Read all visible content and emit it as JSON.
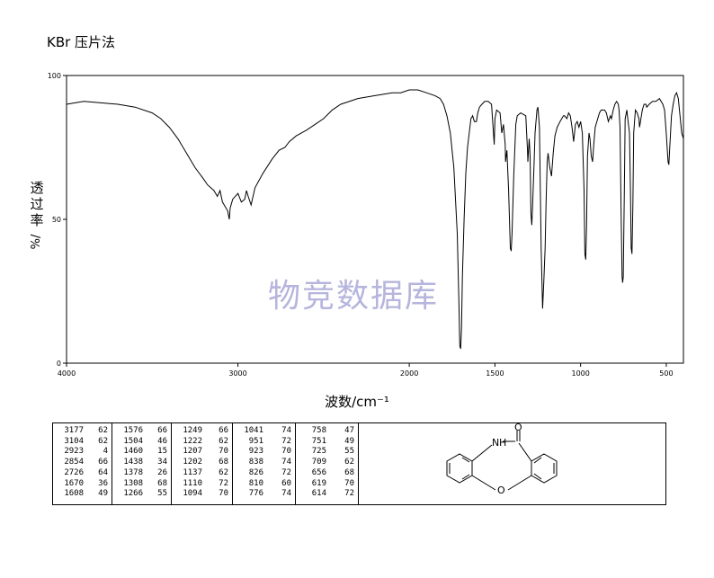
{
  "title": "KBr 压片法",
  "watermark": "物竞数据库",
  "chart_data": {
    "type": "line",
    "title": "",
    "xlabel": "波数/cm⁻¹",
    "ylabel": "透过率",
    "ylabel_unit": "%/",
    "xlim": [
      4000,
      400
    ],
    "ylim": [
      0,
      100
    ],
    "x_ticks": [
      "4000",
      "3000",
      "2000",
      "1500",
      "1000",
      "500"
    ],
    "y_ticks": [
      "100",
      "50",
      "0"
    ],
    "grid": false,
    "series": [
      {
        "points": [
          [
            4000,
            90
          ],
          [
            3900,
            91
          ],
          [
            3800,
            90.5
          ],
          [
            3700,
            90
          ],
          [
            3600,
            89
          ],
          [
            3500,
            87
          ],
          [
            3450,
            85
          ],
          [
            3400,
            82
          ],
          [
            3350,
            78
          ],
          [
            3300,
            73
          ],
          [
            3250,
            68
          ],
          [
            3200,
            64
          ],
          [
            3177,
            62
          ],
          [
            3140,
            60
          ],
          [
            3120,
            58
          ],
          [
            3104,
            60
          ],
          [
            3090,
            56
          ],
          [
            3060,
            53
          ],
          [
            3050,
            50
          ],
          [
            3045,
            54
          ],
          [
            3030,
            57
          ],
          [
            3000,
            59
          ],
          [
            2980,
            56
          ],
          [
            2960,
            57
          ],
          [
            2950,
            60
          ],
          [
            2940,
            58
          ],
          [
            2923,
            55
          ],
          [
            2900,
            61
          ],
          [
            2854,
            66
          ],
          [
            2800,
            71
          ],
          [
            2760,
            74
          ],
          [
            2726,
            75
          ],
          [
            2700,
            77
          ],
          [
            2660,
            79
          ],
          [
            2600,
            81
          ],
          [
            2550,
            83
          ],
          [
            2500,
            85
          ],
          [
            2450,
            88
          ],
          [
            2400,
            90
          ],
          [
            2300,
            92
          ],
          [
            2200,
            93
          ],
          [
            2100,
            94
          ],
          [
            2050,
            94
          ],
          [
            2000,
            95
          ],
          [
            1950,
            95
          ],
          [
            1900,
            94
          ],
          [
            1850,
            93
          ],
          [
            1820,
            92
          ],
          [
            1800,
            90
          ],
          [
            1780,
            86
          ],
          [
            1760,
            80
          ],
          [
            1740,
            68
          ],
          [
            1720,
            45
          ],
          [
            1710,
            20
          ],
          [
            1705,
            6
          ],
          [
            1700,
            5
          ],
          [
            1695,
            12
          ],
          [
            1690,
            30
          ],
          [
            1680,
            50
          ],
          [
            1670,
            66
          ],
          [
            1660,
            75
          ],
          [
            1650,
            80
          ],
          [
            1640,
            85
          ],
          [
            1630,
            86
          ],
          [
            1620,
            84
          ],
          [
            1608,
            84
          ],
          [
            1600,
            87
          ],
          [
            1590,
            89
          ],
          [
            1576,
            90
          ],
          [
            1560,
            91
          ],
          [
            1540,
            91
          ],
          [
            1520,
            90
          ],
          [
            1504,
            76
          ],
          [
            1500,
            85
          ],
          [
            1490,
            88
          ],
          [
            1470,
            87
          ],
          [
            1460,
            80
          ],
          [
            1450,
            83
          ],
          [
            1440,
            76
          ],
          [
            1438,
            70
          ],
          [
            1430,
            74
          ],
          [
            1420,
            60
          ],
          [
            1410,
            40
          ],
          [
            1405,
            39
          ],
          [
            1400,
            45
          ],
          [
            1390,
            65
          ],
          [
            1378,
            83
          ],
          [
            1370,
            86
          ],
          [
            1350,
            87
          ],
          [
            1320,
            86
          ],
          [
            1310,
            74
          ],
          [
            1308,
            70
          ],
          [
            1300,
            78
          ],
          [
            1295,
            72
          ],
          [
            1290,
            52
          ],
          [
            1285,
            48
          ],
          [
            1280,
            55
          ],
          [
            1270,
            72
          ],
          [
            1266,
            80
          ],
          [
            1255,
            88
          ],
          [
            1249,
            89
          ],
          [
            1240,
            82
          ],
          [
            1230,
            40
          ],
          [
            1222,
            19
          ],
          [
            1215,
            28
          ],
          [
            1207,
            40
          ],
          [
            1202,
            55
          ],
          [
            1195,
            70
          ],
          [
            1190,
            73
          ],
          [
            1180,
            68
          ],
          [
            1170,
            65
          ],
          [
            1160,
            73
          ],
          [
            1150,
            79
          ],
          [
            1137,
            82
          ],
          [
            1120,
            84
          ],
          [
            1110,
            85
          ],
          [
            1100,
            86
          ],
          [
            1094,
            86
          ],
          [
            1080,
            85
          ],
          [
            1070,
            87
          ],
          [
            1060,
            86
          ],
          [
            1050,
            82
          ],
          [
            1041,
            77
          ],
          [
            1030,
            83
          ],
          [
            1020,
            84
          ],
          [
            1010,
            82
          ],
          [
            1000,
            84
          ],
          [
            990,
            80
          ],
          [
            980,
            60
          ],
          [
            975,
            38
          ],
          [
            970,
            36
          ],
          [
            965,
            48
          ],
          [
            960,
            72
          ],
          [
            951,
            80
          ],
          [
            945,
            78
          ],
          [
            938,
            72
          ],
          [
            930,
            70
          ],
          [
            923,
            76
          ],
          [
            915,
            82
          ],
          [
            900,
            85
          ],
          [
            890,
            87
          ],
          [
            880,
            88
          ],
          [
            860,
            88
          ],
          [
            850,
            87
          ],
          [
            838,
            84
          ],
          [
            826,
            86
          ],
          [
            820,
            85
          ],
          [
            810,
            88
          ],
          [
            800,
            90
          ],
          [
            790,
            91
          ],
          [
            780,
            90
          ],
          [
            776,
            88
          ],
          [
            770,
            82
          ],
          [
            763,
            50
          ],
          [
            758,
            30
          ],
          [
            755,
            28
          ],
          [
            751,
            30
          ],
          [
            745,
            60
          ],
          [
            740,
            85
          ],
          [
            730,
            88
          ],
          [
            725,
            85
          ],
          [
            715,
            80
          ],
          [
            709,
            60
          ],
          [
            705,
            40
          ],
          [
            700,
            38
          ],
          [
            695,
            55
          ],
          [
            690,
            80
          ],
          [
            680,
            88
          ],
          [
            670,
            87
          ],
          [
            660,
            85
          ],
          [
            656,
            82
          ],
          [
            640,
            88
          ],
          [
            630,
            90
          ],
          [
            619,
            90
          ],
          [
            614,
            89
          ],
          [
            600,
            90
          ],
          [
            580,
            91
          ],
          [
            560,
            91
          ],
          [
            540,
            92
          ],
          [
            520,
            90
          ],
          [
            510,
            88
          ],
          [
            500,
            80
          ],
          [
            490,
            70
          ],
          [
            485,
            69
          ],
          [
            480,
            75
          ],
          [
            470,
            86
          ],
          [
            460,
            90
          ],
          [
            450,
            93
          ],
          [
            440,
            94
          ],
          [
            430,
            92
          ],
          [
            420,
            86
          ],
          [
            410,
            80
          ],
          [
            400,
            78
          ]
        ]
      }
    ]
  },
  "peak_table": {
    "columns": [
      [
        [
          "3177",
          "62"
        ],
        [
          "3104",
          "62"
        ],
        [
          "2923",
          "4"
        ],
        [
          "2854",
          "66"
        ],
        [
          "2726",
          "64"
        ],
        [
          "1670",
          "36"
        ],
        [
          "1608",
          "49"
        ]
      ],
      [
        [
          "1576",
          "66"
        ],
        [
          "1504",
          "46"
        ],
        [
          "1460",
          "15"
        ],
        [
          "1438",
          "34"
        ],
        [
          "1378",
          "26"
        ],
        [
          "1308",
          "68"
        ],
        [
          "1266",
          "55"
        ]
      ],
      [
        [
          "1249",
          "66"
        ],
        [
          "1222",
          "62"
        ],
        [
          "1207",
          "70"
        ],
        [
          "1202",
          "68"
        ],
        [
          "1137",
          "62"
        ],
        [
          "1110",
          "72"
        ],
        [
          "1094",
          "70"
        ]
      ],
      [
        [
          "1041",
          "74"
        ],
        [
          "951",
          "72"
        ],
        [
          "923",
          "70"
        ],
        [
          "838",
          "74"
        ],
        [
          "826",
          "72"
        ],
        [
          "810",
          "60"
        ],
        [
          "776",
          "74"
        ]
      ],
      [
        [
          "758",
          "47"
        ],
        [
          "751",
          "49"
        ],
        [
          "725",
          "55"
        ],
        [
          "709",
          "62"
        ],
        [
          "656",
          "68"
        ],
        [
          "619",
          "70"
        ],
        [
          "614",
          "72"
        ]
      ]
    ]
  },
  "structure": {
    "atom_labels": [
      "N",
      "H",
      "O",
      "O"
    ]
  }
}
